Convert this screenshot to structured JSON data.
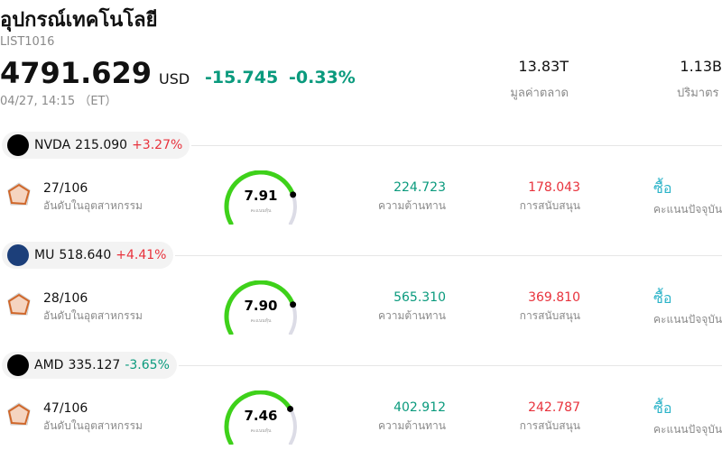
{
  "header": {
    "title": "อุปกรณ์เทคโนโลยี",
    "code": "LIST1016",
    "price": "4791.629",
    "currency": "USD",
    "change": "-15.745",
    "change_pct": "-0.33%",
    "time": "04/27, 14:15 （ET）",
    "stats": [
      {
        "value": "13.83T",
        "label": "มูลค่าตลาด"
      },
      {
        "value": "1.13B",
        "label": "ปริมาตร"
      }
    ]
  },
  "stocks": [
    {
      "ticker": "NVDA",
      "price": "215.090",
      "change": "+3.27%",
      "rank": "27/106",
      "rank_label": "อันดับในอุตสาหกรรม",
      "score": {
        "value": 7.91,
        "label": "7.91"
      },
      "score_label": "คะแนนหุ้น",
      "resistance": "224.723",
      "resistance_label": "ความต้านทาน",
      "support": "178.043",
      "support_label": "การสนับสนุน",
      "rating": "ซื้อ",
      "rating_label": "คะแนนปัจจุบัน"
    },
    {
      "ticker": "MU",
      "price": "518.640",
      "change": "+4.41%",
      "rank": "28/106",
      "rank_label": "อันดับในอุตสาหกรรม",
      "score": {
        "value": 7.9,
        "label": "7.90"
      },
      "score_label": "คะแนนหุ้น",
      "resistance": "565.310",
      "resistance_label": "ความต้านทาน",
      "support": "369.810",
      "support_label": "การสนับสนุน",
      "rating": "ซื้อ",
      "rating_label": "คะแนนปัจจุบัน"
    },
    {
      "ticker": "AMD",
      "price": "335.127",
      "change": "-3.65%",
      "rank": "47/106",
      "rank_label": "อันดับในอุตสาหกรรม",
      "score": {
        "value": 7.46,
        "label": "7.46"
      },
      "score_label": "คะแนนหุ้น",
      "resistance": "402.912",
      "resistance_label": "ความต้านทาน",
      "support": "242.787",
      "support_label": "การสนับสนุน",
      "rating": "ซื้อ",
      "rating_label": "คะแนนปัจจุบัน"
    }
  ]
}
